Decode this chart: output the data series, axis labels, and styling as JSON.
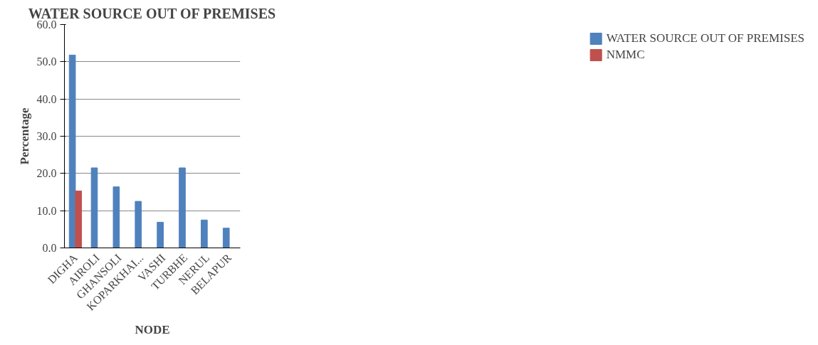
{
  "chart_data": {
    "type": "bar",
    "title": "WATER SOURCE OUT OF PREMISES",
    "xlabel": "NODE",
    "ylabel": "Percentage",
    "categories": [
      "DIGHA",
      "AIROLI",
      "GHANSOLI",
      "KOPARKHAI...",
      "VASHI",
      "TURBHE",
      "NERUL",
      "BELAPUR"
    ],
    "series": [
      {
        "name": "WATER SOURCE OUT OF PREMISES",
        "color": "#4f81bd",
        "values": [
          51.8,
          21.5,
          16.4,
          12.5,
          6.9,
          21.5,
          7.5,
          5.3
        ]
      },
      {
        "name": "NMMC",
        "color": "#c0504d",
        "values": [
          15.3,
          null,
          null,
          null,
          null,
          null,
          null,
          null
        ]
      }
    ],
    "ylim": [
      0,
      60
    ],
    "yticks": [
      {
        "value": 0,
        "label": "0.0"
      },
      {
        "value": 10,
        "label": "10.0"
      },
      {
        "value": 20,
        "label": "20.0"
      },
      {
        "value": 30,
        "label": "30.0"
      },
      {
        "value": 40,
        "label": "40.0"
      },
      {
        "value": 50,
        "label": "50.0"
      },
      {
        "value": 60,
        "label": "60.0"
      }
    ],
    "grid": "y",
    "legend": "right"
  }
}
